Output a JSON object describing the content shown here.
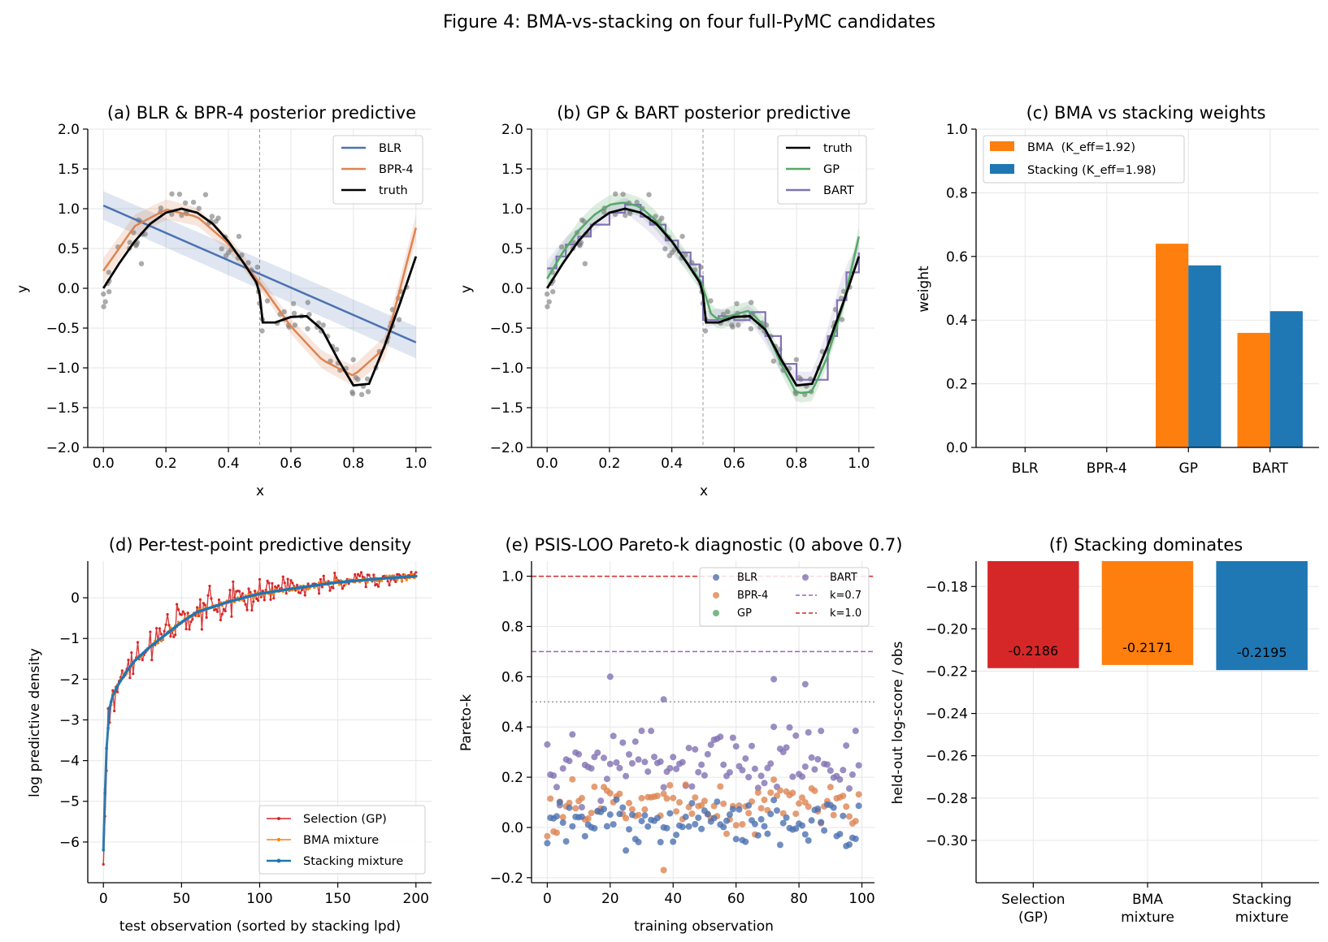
{
  "figure": {
    "suptitle": "Figure 4: BMA-vs-stacking on four full-PyMC candidates"
  },
  "colors": {
    "blr": "#4c72b0",
    "bpr4": "#dd8452",
    "gp": "#55a868",
    "bart": "#8172b3",
    "truth": "#000000",
    "bma": "#ff7f0e",
    "stacking": "#1f77b4",
    "selection": "#d62728",
    "k07": "#9467bd",
    "k10": "#d62728",
    "data_points": "#808080"
  },
  "chart_data": [
    {
      "id": "a",
      "type": "line",
      "title": "(a) BLR & BPR-4 posterior predictive",
      "xlabel": "x",
      "ylabel": "y",
      "xlim": [
        -0.05,
        1.05
      ],
      "ylim": [
        -2.0,
        2.0
      ],
      "xticks": [
        "0.0",
        "0.2",
        "0.4",
        "0.6",
        "0.8",
        "1.0"
      ],
      "yticks": [
        "−2.0",
        "−1.5",
        "−1.0",
        "−0.5",
        "0.0",
        "0.5",
        "1.0",
        "1.5",
        "2.0"
      ],
      "vline_x": 0.5,
      "legend": [
        "BLR",
        "BPR-4",
        "truth"
      ],
      "legend_position": "upper right",
      "series": [
        {
          "name": "BLR",
          "x": [
            0.0,
            1.0
          ],
          "y": [
            1.04,
            -0.68
          ],
          "band_halfwidth": [
            0.18,
            0.2
          ]
        },
        {
          "name": "BPR-4",
          "x": [
            0.0,
            0.1,
            0.2,
            0.3,
            0.4,
            0.5,
            0.6,
            0.7,
            0.8,
            0.9,
            1.0
          ],
          "y": [
            0.22,
            0.78,
            0.99,
            0.9,
            0.56,
            0.07,
            -0.48,
            -0.9,
            -1.1,
            -0.75,
            0.76
          ]
        },
        {
          "name": "truth",
          "x": [
            0.0,
            0.05,
            0.1,
            0.15,
            0.2,
            0.25,
            0.3,
            0.35,
            0.4,
            0.45,
            0.49,
            0.5,
            0.51,
            0.55,
            0.6,
            0.65,
            0.7,
            0.75,
            0.8,
            0.85,
            0.9,
            0.95,
            1.0
          ],
          "y": [
            0.0,
            0.31,
            0.59,
            0.81,
            0.95,
            1.0,
            0.95,
            0.81,
            0.59,
            0.31,
            0.07,
            -0.08,
            -0.43,
            -0.43,
            -0.36,
            -0.35,
            -0.52,
            -0.89,
            -1.22,
            -1.2,
            -0.72,
            -0.18,
            0.4
          ]
        }
      ],
      "observations": {
        "n": 100
      }
    },
    {
      "id": "b",
      "type": "line",
      "title": "(b) GP & BART posterior predictive",
      "xlabel": "x",
      "ylabel": "y",
      "xlim": [
        -0.05,
        1.05
      ],
      "ylim": [
        -2.0,
        2.0
      ],
      "xticks": [
        "0.0",
        "0.2",
        "0.4",
        "0.6",
        "0.8",
        "1.0"
      ],
      "yticks": [
        "−2.0",
        "−1.5",
        "−1.0",
        "−0.5",
        "0.0",
        "0.5",
        "1.0",
        "1.5",
        "2.0"
      ],
      "vline_x": 0.5,
      "legend": [
        "truth",
        "GP",
        "BART"
      ],
      "legend_position": "upper right",
      "series": [
        {
          "name": "truth",
          "x": [
            0.0,
            0.05,
            0.1,
            0.15,
            0.2,
            0.25,
            0.3,
            0.35,
            0.4,
            0.45,
            0.49,
            0.5,
            0.51,
            0.55,
            0.6,
            0.65,
            0.7,
            0.75,
            0.8,
            0.85,
            0.9,
            0.95,
            1.0
          ],
          "y": [
            0.0,
            0.31,
            0.59,
            0.81,
            0.95,
            1.0,
            0.95,
            0.81,
            0.59,
            0.31,
            0.07,
            -0.08,
            -0.43,
            -0.43,
            -0.36,
            -0.35,
            -0.52,
            -0.89,
            -1.22,
            -1.2,
            -0.72,
            -0.18,
            0.4
          ]
        },
        {
          "name": "GP",
          "x": [
            0.0,
            0.05,
            0.1,
            0.15,
            0.2,
            0.25,
            0.3,
            0.35,
            0.4,
            0.45,
            0.5,
            0.52,
            0.55,
            0.6,
            0.65,
            0.7,
            0.75,
            0.8,
            0.85,
            0.9,
            0.95,
            1.0
          ],
          "y": [
            0.12,
            0.45,
            0.72,
            0.92,
            1.05,
            1.08,
            1.02,
            0.85,
            0.6,
            0.32,
            0.05,
            -0.3,
            -0.4,
            -0.33,
            -0.28,
            -0.5,
            -0.95,
            -1.32,
            -1.3,
            -0.85,
            -0.2,
            0.65
          ]
        },
        {
          "name": "BART",
          "x": [
            0.0,
            0.03,
            0.06,
            0.1,
            0.14,
            0.2,
            0.25,
            0.3,
            0.33,
            0.38,
            0.42,
            0.46,
            0.49,
            0.5,
            0.55,
            0.6,
            0.65,
            0.7,
            0.75,
            0.8,
            0.85,
            0.9,
            0.93,
            0.96,
            1.0
          ],
          "y": [
            0.25,
            0.4,
            0.55,
            0.65,
            0.8,
            0.95,
            1.05,
            0.9,
            0.8,
            0.6,
            0.45,
            0.3,
            0.15,
            -0.4,
            -0.35,
            -0.4,
            -0.3,
            -0.6,
            -0.95,
            -1.15,
            -1.15,
            -0.6,
            -0.15,
            0.2,
            0.45
          ]
        }
      ],
      "observations": {
        "n": 100
      }
    },
    {
      "id": "c",
      "type": "bar",
      "title": "(c) BMA vs stacking weights",
      "xlabel": "",
      "ylabel": "weight",
      "ylim": [
        0.0,
        1.0
      ],
      "yticks": [
        "0.0",
        "0.2",
        "0.4",
        "0.6",
        "0.8",
        "1.0"
      ],
      "categories": [
        "BLR",
        "BPR-4",
        "GP",
        "BART"
      ],
      "legend_position": "upper left",
      "series": [
        {
          "name": "BMA  (K_eff=1.92)",
          "values": [
            0.0,
            0.0,
            0.64,
            0.36
          ]
        },
        {
          "name": "Stacking (K_eff=1.98)",
          "values": [
            0.0,
            0.0,
            0.572,
            0.428
          ]
        }
      ]
    },
    {
      "id": "d",
      "type": "line",
      "title": "(d) Per-test-point predictive density",
      "xlabel": "test observation (sorted by stacking lpd)",
      "ylabel": "log predictive density",
      "xlim": [
        -10,
        210
      ],
      "ylim": [
        -7.0,
        0.9
      ],
      "xticks": [
        "0",
        "50",
        "100",
        "150",
        "200"
      ],
      "yticks": [
        "−6",
        "−5",
        "−4",
        "−3",
        "−2",
        "−1",
        "0"
      ],
      "legend_position": "lower right",
      "n_points": 201,
      "series": [
        {
          "name": "Selection (GP)",
          "jitter": 0.3
        },
        {
          "name": "BMA mixture",
          "jitter": 0.05
        },
        {
          "name": "Stacking mixture",
          "x": [
            0,
            1,
            2,
            3,
            4,
            6,
            8,
            10,
            15,
            20,
            30,
            40,
            50,
            60,
            80,
            100,
            120,
            150,
            180,
            200
          ],
          "y": [
            -6.2,
            -4.8,
            -3.7,
            -3.2,
            -2.7,
            -2.4,
            -2.25,
            -2.1,
            -1.8,
            -1.55,
            -1.2,
            -0.9,
            -0.6,
            -0.35,
            -0.1,
            0.1,
            0.22,
            0.38,
            0.48,
            0.53
          ]
        }
      ]
    },
    {
      "id": "e",
      "type": "scatter",
      "title": "(e) PSIS-LOO Pareto-k diagnostic (0 above 0.7)",
      "xlabel": "training observation",
      "ylabel": "Pareto-k",
      "xlim": [
        -5,
        104
      ],
      "ylim": [
        -0.22,
        1.06
      ],
      "xticks": [
        "0",
        "20",
        "40",
        "60",
        "80",
        "100"
      ],
      "yticks": [
        "−0.2",
        "0.0",
        "0.2",
        "0.4",
        "0.6",
        "0.8",
        "1.0"
      ],
      "hlines": [
        {
          "name": "k=0.7",
          "y": 0.7
        },
        {
          "name": "k=1.0",
          "y": 1.0
        },
        {
          "name": "",
          "y": 0.5
        }
      ],
      "legend": [
        "BLR",
        "BPR-4",
        "GP",
        "BART",
        "k=0.7",
        "k=1.0"
      ],
      "legend_position": "upper right",
      "series": [
        {
          "name": "BLR",
          "mean": 0.02,
          "spread": 0.08
        },
        {
          "name": "BPR-4",
          "mean": 0.08,
          "spread": 0.1
        },
        {
          "name": "GP",
          "mean": 0.0,
          "spread": 0.0
        },
        {
          "name": "BART",
          "mean": 0.26,
          "spread": 0.13,
          "extreme": [
            [
              20,
              0.6
            ],
            [
              37,
              0.51
            ],
            [
              72,
              0.59
            ],
            [
              82,
              0.57
            ]
          ]
        }
      ],
      "n_points": 100
    },
    {
      "id": "f",
      "type": "bar",
      "title": "(f) Stacking dominates",
      "xlabel": "",
      "ylabel": "held-out log-score / obs",
      "ylim": [
        -0.32,
        -0.168
      ],
      "yticks": [
        "−0.30",
        "−0.28",
        "−0.26",
        "−0.24",
        "−0.22",
        "−0.20",
        "−0.18"
      ],
      "categories": [
        "Selection\n(GP)",
        "BMA\nmixture",
        "Stacking\nmixture"
      ],
      "values": [
        -0.2186,
        -0.2171,
        -0.2195
      ],
      "data_labels": [
        "-0.2186",
        "-0.2171",
        "-0.2195"
      ]
    }
  ]
}
